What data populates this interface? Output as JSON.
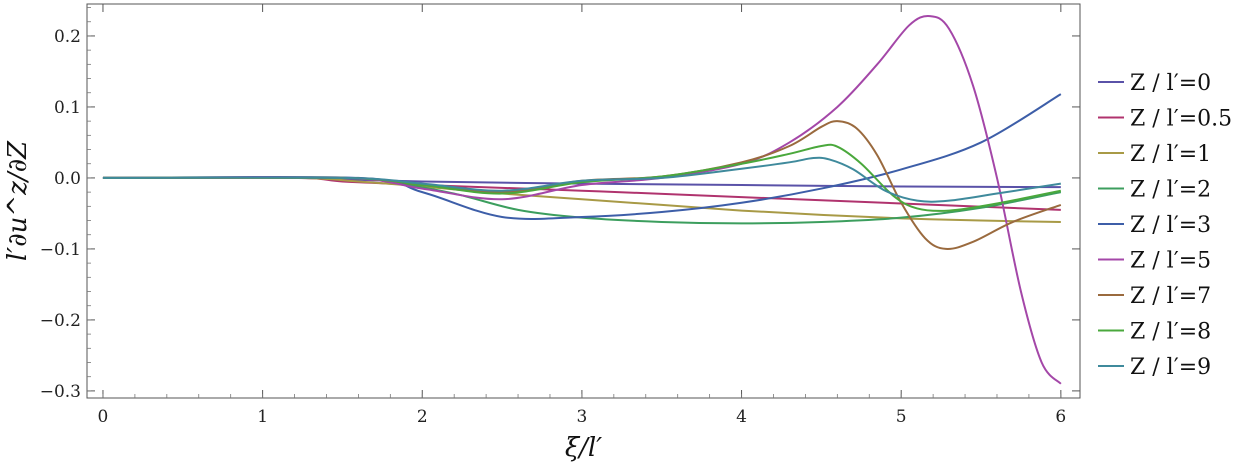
{
  "chart_data": {
    "type": "line",
    "title": "",
    "xlabel": "ξ/l′",
    "ylabel": "l′∂u^z/∂Z",
    "xlim": [
      -0.1,
      6.12
    ],
    "ylim": [
      -0.31,
      0.245
    ],
    "x_ticks": [
      0,
      1,
      2,
      3,
      4,
      5,
      6
    ],
    "x_tick_labels": [
      "0",
      "1",
      "2",
      "3",
      "4",
      "5",
      "6"
    ],
    "y_ticks": [
      -0.3,
      -0.2,
      -0.1,
      0.0,
      0.1,
      0.2
    ],
    "y_tick_labels": [
      "−0.3",
      "−0.2",
      "−0.1",
      "0.0",
      "0.1",
      "0.2"
    ],
    "grid": false,
    "legend_position": "right",
    "series": [
      {
        "name": "Z / l′=0",
        "color": "#5a52a8",
        "points": [
          [
            0,
            0
          ],
          [
            1.2,
            0
          ],
          [
            1.5,
            -0.002
          ],
          [
            2.0,
            -0.005
          ],
          [
            3.0,
            -0.008
          ],
          [
            4.0,
            -0.01
          ],
          [
            5.0,
            -0.012
          ],
          [
            6.0,
            -0.013
          ]
        ]
      },
      {
        "name": "Z / l′=0.5",
        "color": "#b0336e",
        "points": [
          [
            0,
            0
          ],
          [
            1.2,
            0
          ],
          [
            1.5,
            -0.005
          ],
          [
            2.0,
            -0.01
          ],
          [
            3.0,
            -0.018
          ],
          [
            4.0,
            -0.027
          ],
          [
            5.0,
            -0.036
          ],
          [
            6.0,
            -0.045
          ]
        ]
      },
      {
        "name": "Z / l′=1",
        "color": "#a89a46",
        "points": [
          [
            0,
            0
          ],
          [
            1.2,
            0
          ],
          [
            1.6,
            -0.005
          ],
          [
            2.0,
            -0.012
          ],
          [
            2.5,
            -0.022
          ],
          [
            3.0,
            -0.03
          ],
          [
            3.5,
            -0.038
          ],
          [
            4.0,
            -0.046
          ],
          [
            4.5,
            -0.052
          ],
          [
            5.0,
            -0.057
          ],
          [
            5.5,
            -0.06
          ],
          [
            6.0,
            -0.062
          ]
        ]
      },
      {
        "name": "Z / l′=2",
        "color": "#3c9e5e",
        "points": [
          [
            0,
            0
          ],
          [
            1.5,
            0
          ],
          [
            1.8,
            -0.006
          ],
          [
            2.2,
            -0.022
          ],
          [
            2.6,
            -0.045
          ],
          [
            3.0,
            -0.056
          ],
          [
            3.5,
            -0.062
          ],
          [
            4.0,
            -0.064
          ],
          [
            4.5,
            -0.062
          ],
          [
            5.0,
            -0.056
          ],
          [
            5.5,
            -0.042
          ],
          [
            6.0,
            -0.02
          ]
        ]
      },
      {
        "name": "Z / l′=3",
        "color": "#3d5ea8",
        "points": [
          [
            0,
            0
          ],
          [
            1.6,
            0
          ],
          [
            2.0,
            -0.02
          ],
          [
            2.5,
            -0.055
          ],
          [
            3.0,
            -0.055
          ],
          [
            3.5,
            -0.048
          ],
          [
            4.0,
            -0.035
          ],
          [
            4.5,
            -0.015
          ],
          [
            5.0,
            0.012
          ],
          [
            5.5,
            0.05
          ],
          [
            6.0,
            0.118
          ]
        ]
      },
      {
        "name": "Z / l′=5",
        "color": "#a447a8",
        "points": [
          [
            0,
            0
          ],
          [
            1.5,
            0
          ],
          [
            2.0,
            -0.015
          ],
          [
            2.5,
            -0.03
          ],
          [
            3.0,
            -0.01
          ],
          [
            3.5,
            0.0
          ],
          [
            4.0,
            0.02
          ],
          [
            4.3,
            0.05
          ],
          [
            4.6,
            0.1
          ],
          [
            4.85,
            0.16
          ],
          [
            5.05,
            0.215
          ],
          [
            5.18,
            0.228
          ],
          [
            5.3,
            0.21
          ],
          [
            5.45,
            0.13
          ],
          [
            5.6,
            0.0
          ],
          [
            5.75,
            -0.16
          ],
          [
            5.88,
            -0.26
          ],
          [
            6.0,
            -0.29
          ]
        ]
      },
      {
        "name": "Z / l′=7",
        "color": "#9a6a3e",
        "points": [
          [
            0,
            0
          ],
          [
            1.5,
            0
          ],
          [
            2.0,
            -0.01
          ],
          [
            2.5,
            -0.02
          ],
          [
            3.0,
            -0.004
          ],
          [
            3.5,
            0.002
          ],
          [
            4.0,
            0.022
          ],
          [
            4.3,
            0.045
          ],
          [
            4.5,
            0.072
          ],
          [
            4.6,
            0.08
          ],
          [
            4.72,
            0.07
          ],
          [
            4.85,
            0.032
          ],
          [
            5.0,
            -0.035
          ],
          [
            5.15,
            -0.085
          ],
          [
            5.28,
            -0.1
          ],
          [
            5.45,
            -0.09
          ],
          [
            5.7,
            -0.062
          ],
          [
            6.0,
            -0.038
          ]
        ]
      },
      {
        "name": "Z / l′=8",
        "color": "#4aa83c",
        "points": [
          [
            0,
            0
          ],
          [
            1.5,
            0
          ],
          [
            2.0,
            -0.01
          ],
          [
            2.5,
            -0.022
          ],
          [
            3.0,
            -0.006
          ],
          [
            3.5,
            0.002
          ],
          [
            4.0,
            0.02
          ],
          [
            4.3,
            0.034
          ],
          [
            4.5,
            0.045
          ],
          [
            4.6,
            0.044
          ],
          [
            4.75,
            0.02
          ],
          [
            4.95,
            -0.025
          ],
          [
            5.1,
            -0.043
          ],
          [
            5.3,
            -0.046
          ],
          [
            5.6,
            -0.036
          ],
          [
            6.0,
            -0.018
          ]
        ]
      },
      {
        "name": "Z / l′=9",
        "color": "#3f8a9c",
        "points": [
          [
            0,
            0
          ],
          [
            1.5,
            0
          ],
          [
            2.0,
            -0.008
          ],
          [
            2.5,
            -0.018
          ],
          [
            3.0,
            -0.004
          ],
          [
            3.5,
            0.0
          ],
          [
            4.0,
            0.013
          ],
          [
            4.3,
            0.022
          ],
          [
            4.45,
            0.028
          ],
          [
            4.55,
            0.026
          ],
          [
            4.7,
            0.012
          ],
          [
            4.9,
            -0.018
          ],
          [
            5.1,
            -0.032
          ],
          [
            5.3,
            -0.032
          ],
          [
            5.6,
            -0.022
          ],
          [
            6.0,
            -0.008
          ]
        ]
      }
    ]
  }
}
